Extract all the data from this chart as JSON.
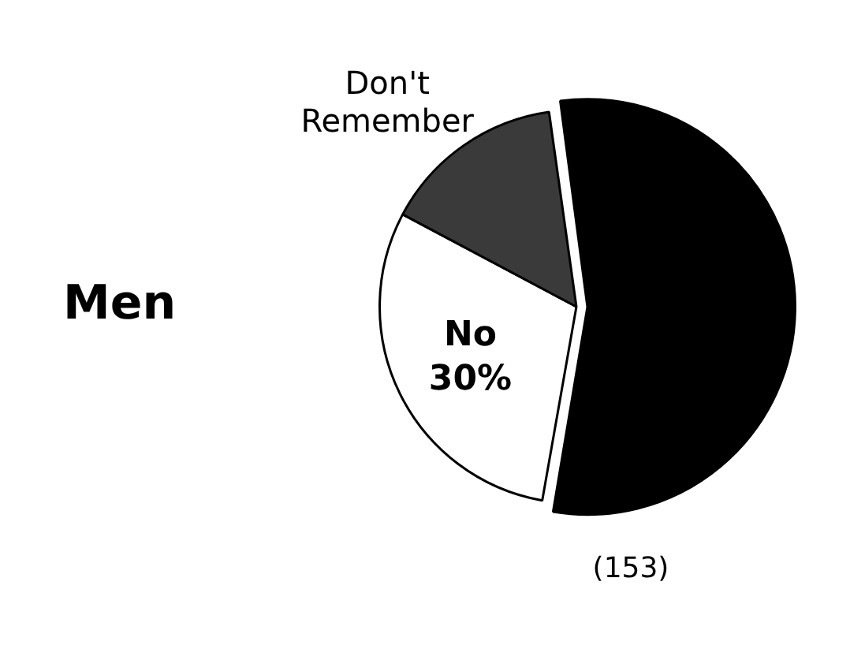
{
  "chart_data": {
    "type": "pie",
    "title": "Men",
    "categories": [
      null,
      "No",
      "Don't Remember"
    ],
    "values": [
      55,
      30,
      15
    ],
    "colors": [
      "#000000",
      "#ffffff",
      "#3a3a3a"
    ],
    "value_labels": [
      null,
      "30%",
      null
    ],
    "annotations": [
      "(153)"
    ]
  }
}
